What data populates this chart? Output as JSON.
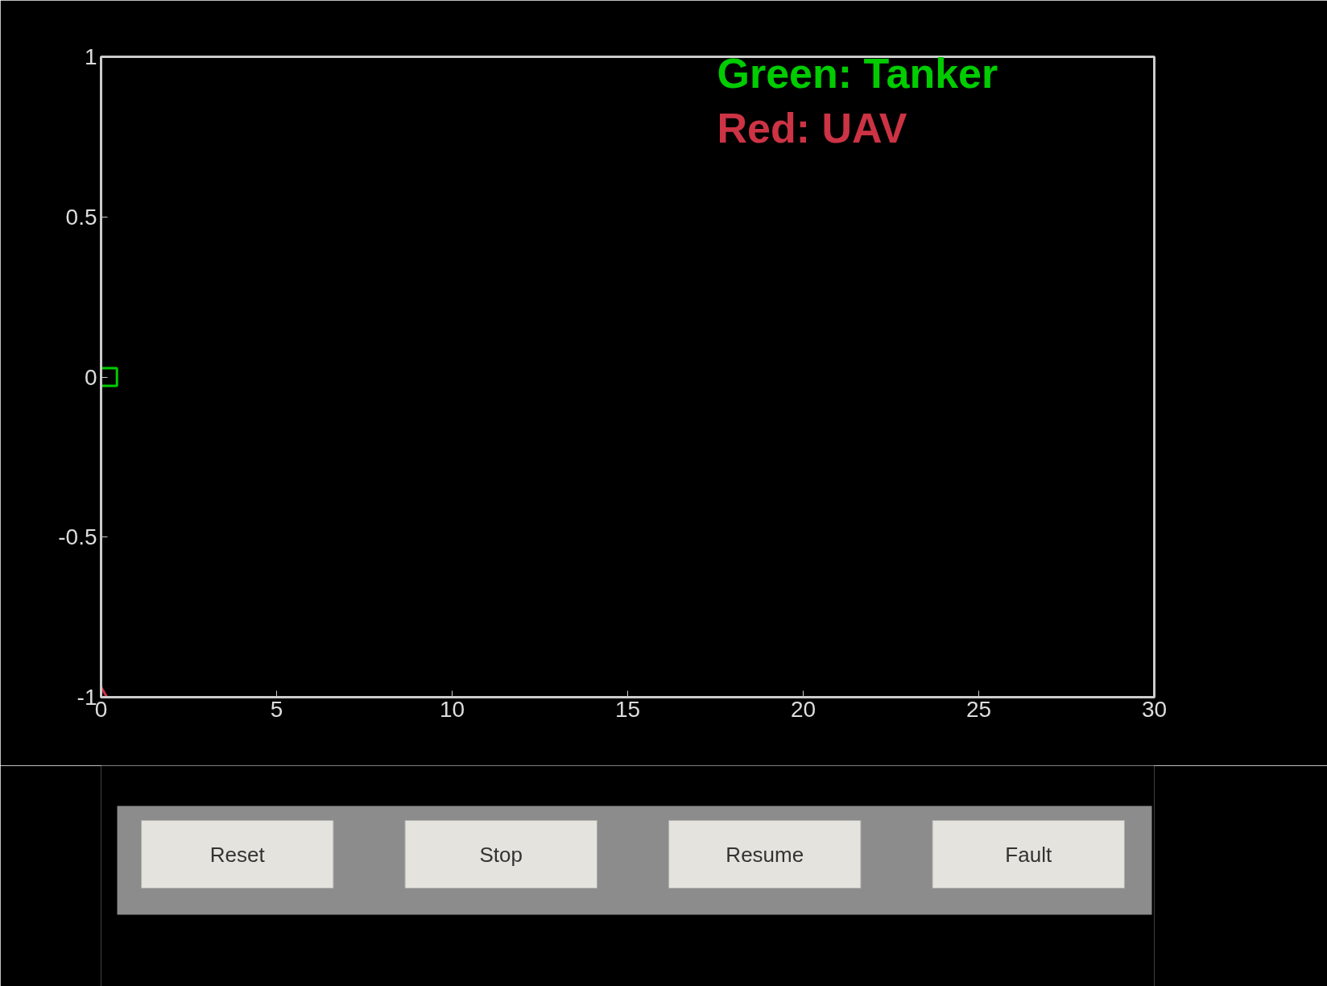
{
  "chart_data": {
    "type": "scatter",
    "series": [
      {
        "name": "Green: Tanker",
        "color": "#00cc00",
        "x": [
          0.2
        ],
        "values": [
          0
        ],
        "marker": "square"
      },
      {
        "name": "Red: UAV",
        "color": "#cc3344",
        "x": [
          0
        ],
        "values": [
          -1
        ],
        "marker": "triangle"
      }
    ],
    "xlim": [
      0,
      30
    ],
    "xticks": [
      0,
      5,
      10,
      15,
      20,
      25,
      30
    ],
    "ylim": [
      -1,
      1
    ],
    "yticks": [
      -1,
      {
        "value": -0.5,
        "label": "-0.5"
      },
      0,
      {
        "value": 0.5,
        "label": "0.5"
      },
      1
    ],
    "grid": false,
    "legend": "top right",
    "annotations": [
      "Reset",
      "Stop",
      "Resume",
      "Fault"
    ]
  }
}
